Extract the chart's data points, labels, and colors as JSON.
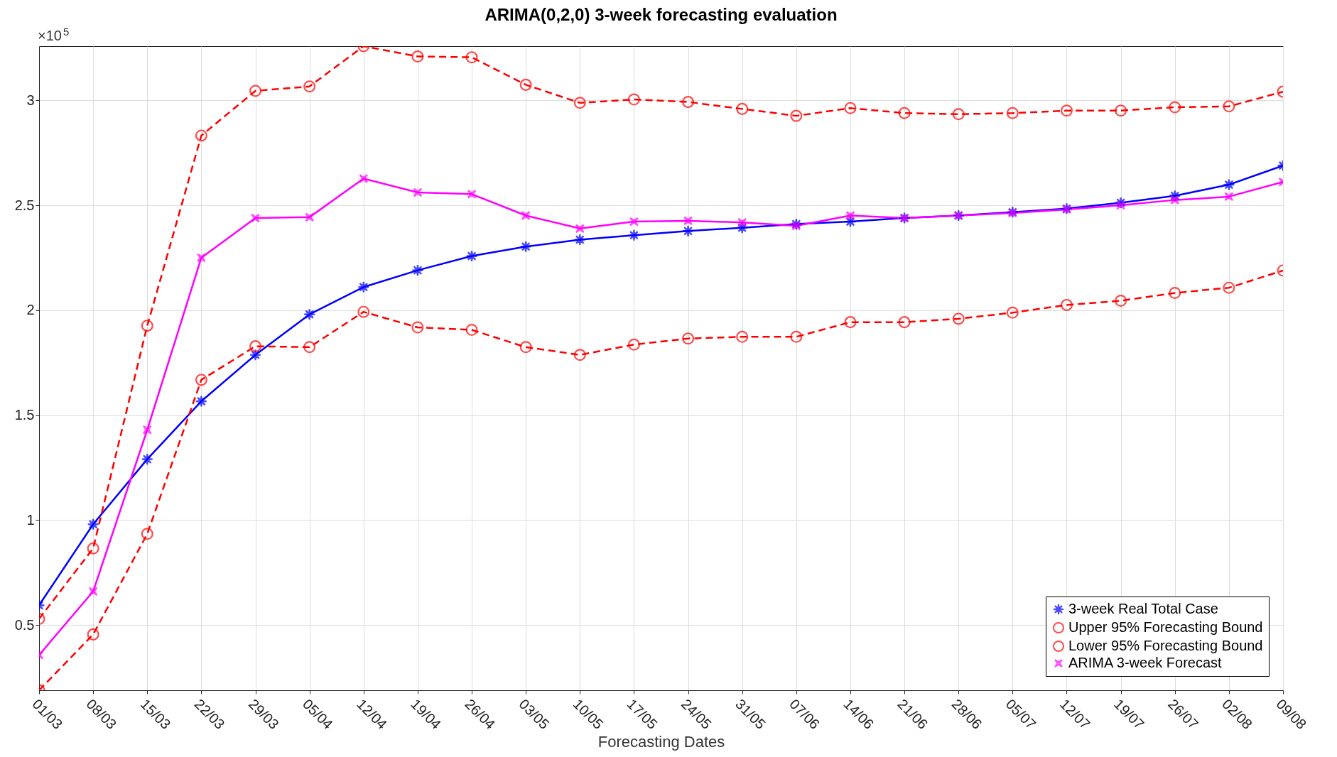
{
  "chart_data": {
    "type": "line",
    "title": "ARIMA(0,2,0) 3-week forecasting evaluation",
    "xlabel": "Forecasting Dates",
    "categories": [
      "01/03",
      "08/03",
      "15/03",
      "22/03",
      "29/03",
      "05/04",
      "12/04",
      "19/04",
      "26/04",
      "03/05",
      "10/05",
      "17/05",
      "24/05",
      "31/05",
      "07/06",
      "14/06",
      "21/06",
      "28/06",
      "05/07",
      "12/07",
      "19/07",
      "26/07",
      "02/08",
      "09/08"
    ],
    "series": [
      {
        "name": "3-week Real Total Case",
        "color": "#0000ff",
        "marker": "star",
        "line_style": "solid",
        "values": [
          0.594,
          0.98,
          1.29,
          1.566,
          1.787,
          1.98,
          2.11,
          2.19,
          2.258,
          2.303,
          2.336,
          2.357,
          2.377,
          2.393,
          2.41,
          2.422,
          2.439,
          2.451,
          2.467,
          2.484,
          2.512,
          2.545,
          2.598,
          2.689
        ]
      },
      {
        "name": "Upper 95% Forecasting Bound",
        "color": "#ff0000",
        "marker": "circle",
        "line_style": "dashed",
        "values": [
          0.529,
          0.865,
          1.926,
          2.832,
          3.045,
          3.066,
          3.258,
          3.209,
          3.205,
          3.074,
          2.988,
          3.004,
          2.992,
          2.959,
          2.926,
          2.963,
          2.939,
          2.934,
          2.939,
          2.951,
          2.951,
          2.967,
          2.971,
          3.041
        ]
      },
      {
        "name": "Lower 95% Forecasting Bound",
        "color": "#ff0000",
        "marker": "circle",
        "line_style": "dashed",
        "values": [
          0.189,
          0.455,
          0.934,
          1.668,
          1.828,
          1.824,
          1.992,
          1.918,
          1.906,
          1.824,
          1.787,
          1.836,
          1.865,
          1.873,
          1.873,
          1.943,
          1.943,
          1.959,
          1.988,
          2.025,
          2.045,
          2.082,
          2.107,
          2.189
        ]
      },
      {
        "name": "ARIMA 3-week Forecast",
        "color": "#ff00ff",
        "marker": "cross",
        "line_style": "solid",
        "values": [
          0.357,
          0.66,
          1.43,
          2.25,
          2.439,
          2.443,
          2.627,
          2.561,
          2.553,
          2.451,
          2.389,
          2.422,
          2.426,
          2.418,
          2.402,
          2.451,
          2.439,
          2.451,
          2.463,
          2.48,
          2.5,
          2.525,
          2.541,
          2.611
        ]
      }
    ],
    "ylim": [
      0.189,
      3.258
    ],
    "yticks": [
      0.5,
      1,
      1.5,
      2,
      2.5,
      3
    ],
    "annotations": [
      "×10$^{5}$"
    ],
    "grid": true,
    "legend": "bottom right"
  }
}
